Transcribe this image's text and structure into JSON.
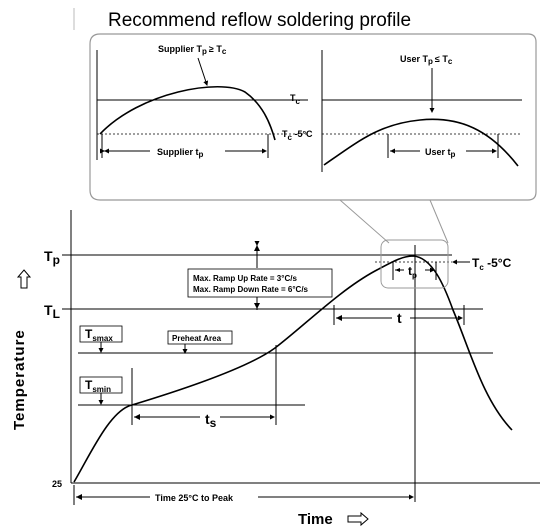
{
  "title": "Recommend reflow soldering profile",
  "inset": {
    "supplier_cond": "Supplier T",
    "supplier_cond_sub": "p",
    "supplier_cond_rest": "≥ T",
    "supplier_cond_sub2": "c",
    "user_cond": "User T",
    "user_cond_sub": "p",
    "user_cond_rest": "≤ T",
    "user_cond_sub2": "c",
    "tc": "T",
    "tc_sub": "c",
    "tc_minus": "T",
    "tc_minus_sub": "c",
    "tc_minus_rest": " -5°C",
    "supplier_tp": "Supplier t",
    "supplier_tp_sub": "p",
    "user_tp": "User t",
    "user_tp_sub": "p"
  },
  "main": {
    "tp": "T",
    "tp_sub": "p",
    "tl": "T",
    "tl_sub": "L",
    "t25": "25",
    "tsmax": "T",
    "tsmax_sub": "smax",
    "tsmin": "T",
    "tsmin_sub": "smin",
    "preheat": "Preheat Area",
    "ramp_up": "Max. Ramp Up Rate = 3°C/s",
    "ramp_down": "Max. Ramp Down Rate = 6°C/s",
    "ts": "t",
    "ts_sub": "s",
    "tp_small": "t",
    "tp_small_sub": "p",
    "t_big": "t",
    "tc_label": "T",
    "tc_label_sub": "c",
    "tc_label_rest": " -5°C",
    "time_to_peak": "Time 25°C to Peak",
    "y_axis": "Temperature",
    "x_axis": "Time"
  }
}
